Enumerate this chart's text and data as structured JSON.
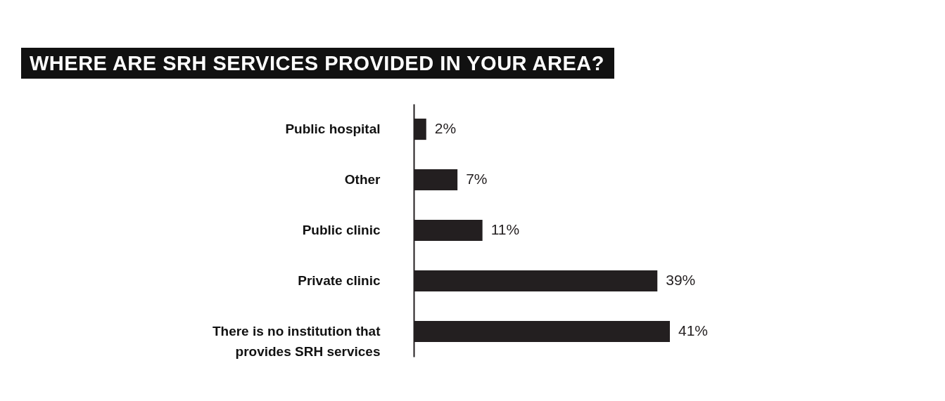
{
  "chart_data": {
    "type": "bar",
    "orientation": "horizontal",
    "title": "WHERE ARE SRH SERVICES PROVIDED IN YOUR AREA?",
    "categories": [
      "Public hospital",
      "Other",
      "Public clinic",
      "Private clinic",
      "There is no institution that provides SRH services"
    ],
    "values": [
      2,
      7,
      11,
      39,
      41
    ],
    "value_labels": [
      "2%",
      "7%",
      "11%",
      "39%",
      "41%"
    ],
    "color": "#231f20",
    "grid": false,
    "tick_labels": "y"
  }
}
